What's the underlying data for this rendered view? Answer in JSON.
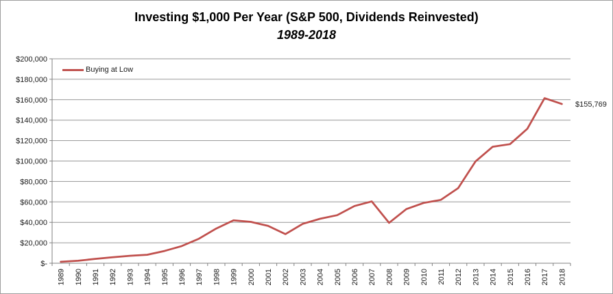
{
  "chart": {
    "title": "Investing $1,000 Per Year (S&P 500, Dividends Reinvested)",
    "subtitle": "1989-2018"
  },
  "chart_data": {
    "type": "line",
    "title": "Investing $1,000 Per Year (S&P 500, Dividends Reinvested)",
    "subtitle": "1989-2018",
    "categories": [
      1989,
      1990,
      1991,
      1992,
      1993,
      1994,
      1995,
      1996,
      1997,
      1998,
      1999,
      2000,
      2001,
      2002,
      2003,
      2004,
      2005,
      2006,
      2007,
      2008,
      2009,
      2010,
      2011,
      2012,
      2013,
      2014,
      2015,
      2016,
      2017,
      2018
    ],
    "series": [
      {
        "name": "Buying at Low",
        "color": "#C0504D",
        "values": [
          1400,
          2400,
          4300,
          5800,
          7300,
          8300,
          12000,
          16800,
          24000,
          34000,
          42000,
          40500,
          36500,
          28500,
          38500,
          43500,
          47000,
          56000,
          60500,
          39500,
          53000,
          59000,
          62000,
          73500,
          99500,
          114000,
          116500,
          131500,
          161500,
          155769
        ]
      }
    ],
    "end_label": "$155,769",
    "xlabel": "",
    "ylabel": "",
    "ylim": [
      0,
      200000
    ],
    "ytick_step": 20000,
    "ytick_labels": [
      "$-",
      "$20,000",
      "$40,000",
      "$60,000",
      "$80,000",
      "$100,000",
      "$120,000",
      "$140,000",
      "$160,000",
      "$180,000",
      "$200,000"
    ],
    "grid": "horizontal",
    "legend_position": "top-left-inside",
    "colors": {
      "series_line": "#C0504D",
      "gridline": "#969696",
      "axis": "#808080",
      "text": "#1a1a1a",
      "border": "#9d9d9d"
    }
  }
}
